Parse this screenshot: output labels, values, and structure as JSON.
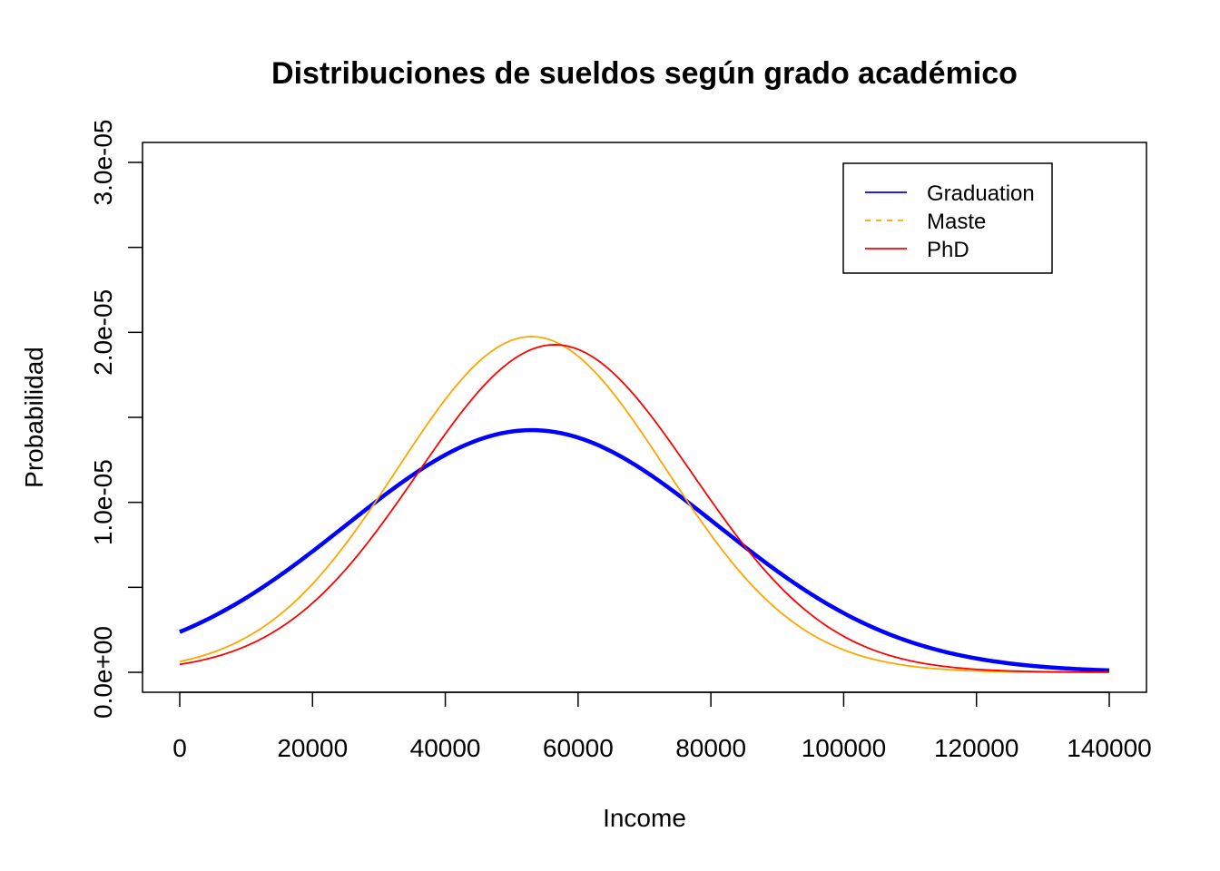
{
  "chart_data": {
    "type": "line",
    "title": "Distribuciones de sueldos según grado académico",
    "xlabel": "Income",
    "ylabel": "Probabilidad",
    "xlim": [
      0,
      140000
    ],
    "ylim": [
      0,
      3e-05
    ],
    "x_ticks": [
      0,
      20000,
      40000,
      60000,
      80000,
      100000,
      120000,
      140000
    ],
    "x_tick_labels": [
      "0",
      "20000",
      "40000",
      "60000",
      "80000",
      "100000",
      "120000",
      "140000"
    ],
    "y_ticks": [
      0,
      5e-06,
      1e-05,
      1.5e-05,
      2e-05,
      2.5e-05,
      3e-05
    ],
    "y_tick_labels": [
      "0.0e+00",
      "",
      "1.0e-05",
      "",
      "2.0e-05",
      "",
      "3.0e-05"
    ],
    "legend_position": "top-right",
    "series": [
      {
        "name": "Graduation",
        "color": "#0000ff",
        "dash": "solid",
        "width": "thick",
        "mean": 53000,
        "sd": 28000
      },
      {
        "name": "Maste",
        "color": "#ffa500",
        "dash": "dashed",
        "width": "thin",
        "mean": 53000,
        "sd": 20200
      },
      {
        "name": "PhD",
        "color": "#ff0000",
        "dash": "solid",
        "width": "thin",
        "mean": 56500,
        "sd": 20700
      }
    ]
  }
}
